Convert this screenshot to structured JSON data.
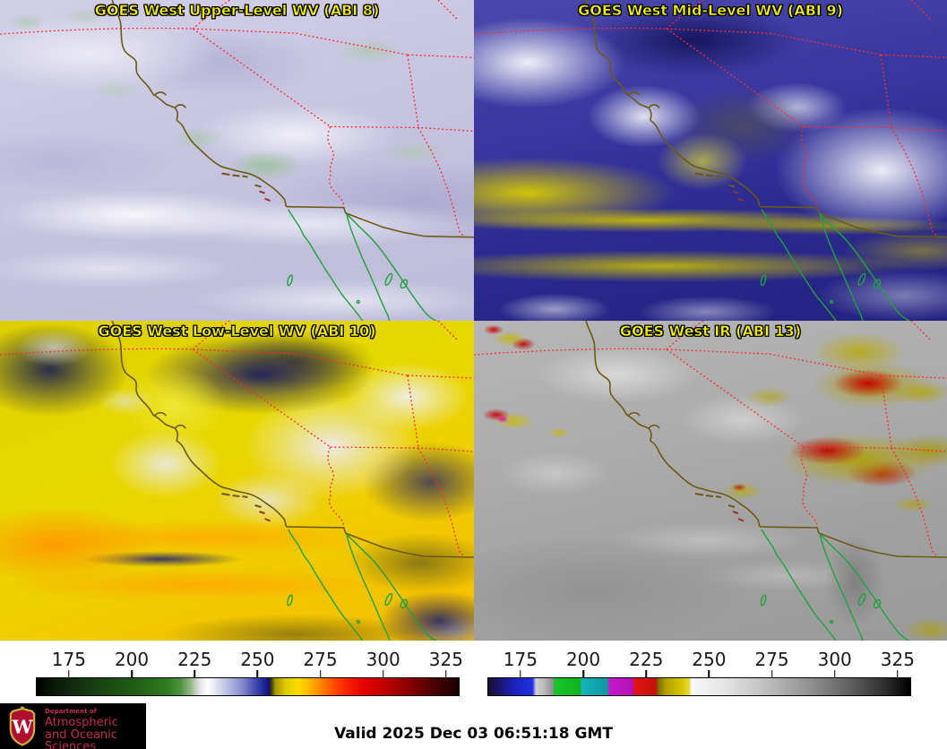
{
  "panels": [
    {
      "id": "upper-wv",
      "title": "GOES West Upper-Level WV (ABI 8)"
    },
    {
      "id": "mid-wv",
      "title": "GOES West Mid-Level WV (ABI 9)"
    },
    {
      "id": "low-wv",
      "title": "GOES West Low-Level WV (ABI 10)"
    },
    {
      "id": "ir",
      "title": "GOES West IR (ABI 13)"
    }
  ],
  "title_color": "#f2ee00",
  "map": {
    "state_border_color": "#ff2a2a",
    "coastline_color": "#6b5a14",
    "mexico_coast_color": "#1fa23c"
  },
  "colorbars": {
    "left": {
      "ticks": [
        "175",
        "200",
        "225",
        "250",
        "275",
        "300",
        "325"
      ],
      "tick_positions_pct": [
        7.8,
        22.63,
        37.47,
        52.3,
        67.13,
        81.97,
        96.8
      ],
      "gradient_stops": [
        [
          0,
          "#000000"
        ],
        [
          5,
          "#0d1d09"
        ],
        [
          14,
          "#174010"
        ],
        [
          24,
          "#215f15"
        ],
        [
          31,
          "#2e7d1e"
        ],
        [
          34,
          "#4f9140"
        ],
        [
          36.5,
          "#93ba88"
        ],
        [
          38.5,
          "#dfe2e6"
        ],
        [
          40.5,
          "#ffffff"
        ],
        [
          43,
          "#dcdcf0"
        ],
        [
          46,
          "#b0b2de"
        ],
        [
          49,
          "#8086cc"
        ],
        [
          51.5,
          "#4750b4"
        ],
        [
          53.5,
          "#232c9c"
        ],
        [
          55,
          "#111478"
        ],
        [
          55.6,
          "#3c3c08"
        ],
        [
          56.5,
          "#a29400"
        ],
        [
          59,
          "#ddcc00"
        ],
        [
          62,
          "#ffdc00"
        ],
        [
          65,
          "#ffb000"
        ],
        [
          68,
          "#ff7800"
        ],
        [
          71,
          "#ff4400"
        ],
        [
          74,
          "#f41c00"
        ],
        [
          78,
          "#e30000"
        ],
        [
          84,
          "#b20000"
        ],
        [
          90,
          "#760000"
        ],
        [
          96,
          "#3a0000"
        ],
        [
          100,
          "#1b0000"
        ]
      ]
    },
    "right": {
      "ticks": [
        "175",
        "200",
        "225",
        "250",
        "275",
        "300",
        "325"
      ],
      "tick_positions_pct": [
        7.8,
        22.63,
        37.47,
        52.3,
        67.13,
        81.97,
        96.8
      ],
      "gradient_stops": [
        [
          0,
          "#17102c"
        ],
        [
          3,
          "#1d1678"
        ],
        [
          6,
          "#1a24b8"
        ],
        [
          10.5,
          "#2132e2"
        ],
        [
          11.3,
          "#d2d2d2"
        ],
        [
          13,
          "#bcbcbc"
        ],
        [
          15.4,
          "#8e8e8e"
        ],
        [
          15.7,
          "#16c828"
        ],
        [
          21.8,
          "#10b21f"
        ],
        [
          22.1,
          "#14b2bc"
        ],
        [
          28.3,
          "#0f99a2"
        ],
        [
          28.6,
          "#c816cc"
        ],
        [
          34.3,
          "#b013b6"
        ],
        [
          34.6,
          "#e21414"
        ],
        [
          39.8,
          "#c41010"
        ],
        [
          40.2,
          "#786a00"
        ],
        [
          42,
          "#b2a000"
        ],
        [
          46,
          "#d8c600"
        ],
        [
          47.6,
          "#e6da40"
        ],
        [
          48.2,
          "#f8f8f8"
        ],
        [
          56,
          "#e4e4e4"
        ],
        [
          65,
          "#c2c2c2"
        ],
        [
          75,
          "#969696"
        ],
        [
          85,
          "#646464"
        ],
        [
          93,
          "#353535"
        ],
        [
          100,
          "#000000"
        ]
      ]
    }
  },
  "footer": {
    "valid_label": "Valid 2025 Dec 03 06:51:18 GMT",
    "logo": {
      "dept_small": "Department of",
      "line1": "Atmospheric",
      "line2": "and Oceanic Sciences",
      "crest_letter": "W",
      "text_color": "#c42a50",
      "bg_color": "#000000"
    }
  }
}
